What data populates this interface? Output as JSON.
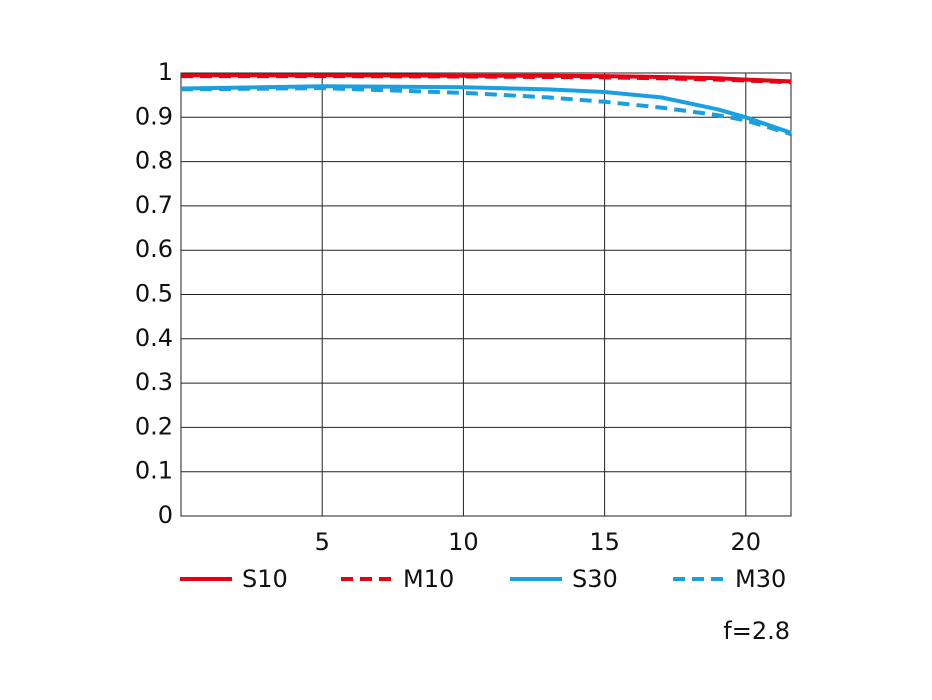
{
  "chart_data": {
    "type": "line",
    "x": [
      0,
      5,
      10,
      13,
      15,
      17,
      19,
      20,
      21.6
    ],
    "series": [
      {
        "name": "S10",
        "color": "#e60012",
        "dash": false,
        "values": [
          0.995,
          0.995,
          0.994,
          0.994,
          0.993,
          0.991,
          0.988,
          0.985,
          0.981
        ]
      },
      {
        "name": "M10",
        "color": "#e60012",
        "dash": true,
        "values": [
          0.993,
          0.993,
          0.992,
          0.991,
          0.99,
          0.988,
          0.985,
          0.983,
          0.979
        ]
      },
      {
        "name": "S30",
        "color": "#1aa0e0",
        "dash": false,
        "values": [
          0.965,
          0.97,
          0.968,
          0.963,
          0.957,
          0.945,
          0.918,
          0.9,
          0.865
        ]
      },
      {
        "name": "M30",
        "color": "#1aa0e0",
        "dash": true,
        "values": [
          0.963,
          0.966,
          0.955,
          0.945,
          0.935,
          0.922,
          0.905,
          0.893,
          0.862
        ]
      }
    ],
    "xlim": [
      0,
      21.6
    ],
    "xticks": [
      5,
      10,
      15,
      20
    ],
    "ylim": [
      0,
      1
    ],
    "yticks": [
      0,
      0.1,
      0.2,
      0.3,
      0.4,
      0.5,
      0.6,
      0.7,
      0.8,
      0.9,
      1
    ],
    "grid": true,
    "annotation": "f=2.8"
  }
}
